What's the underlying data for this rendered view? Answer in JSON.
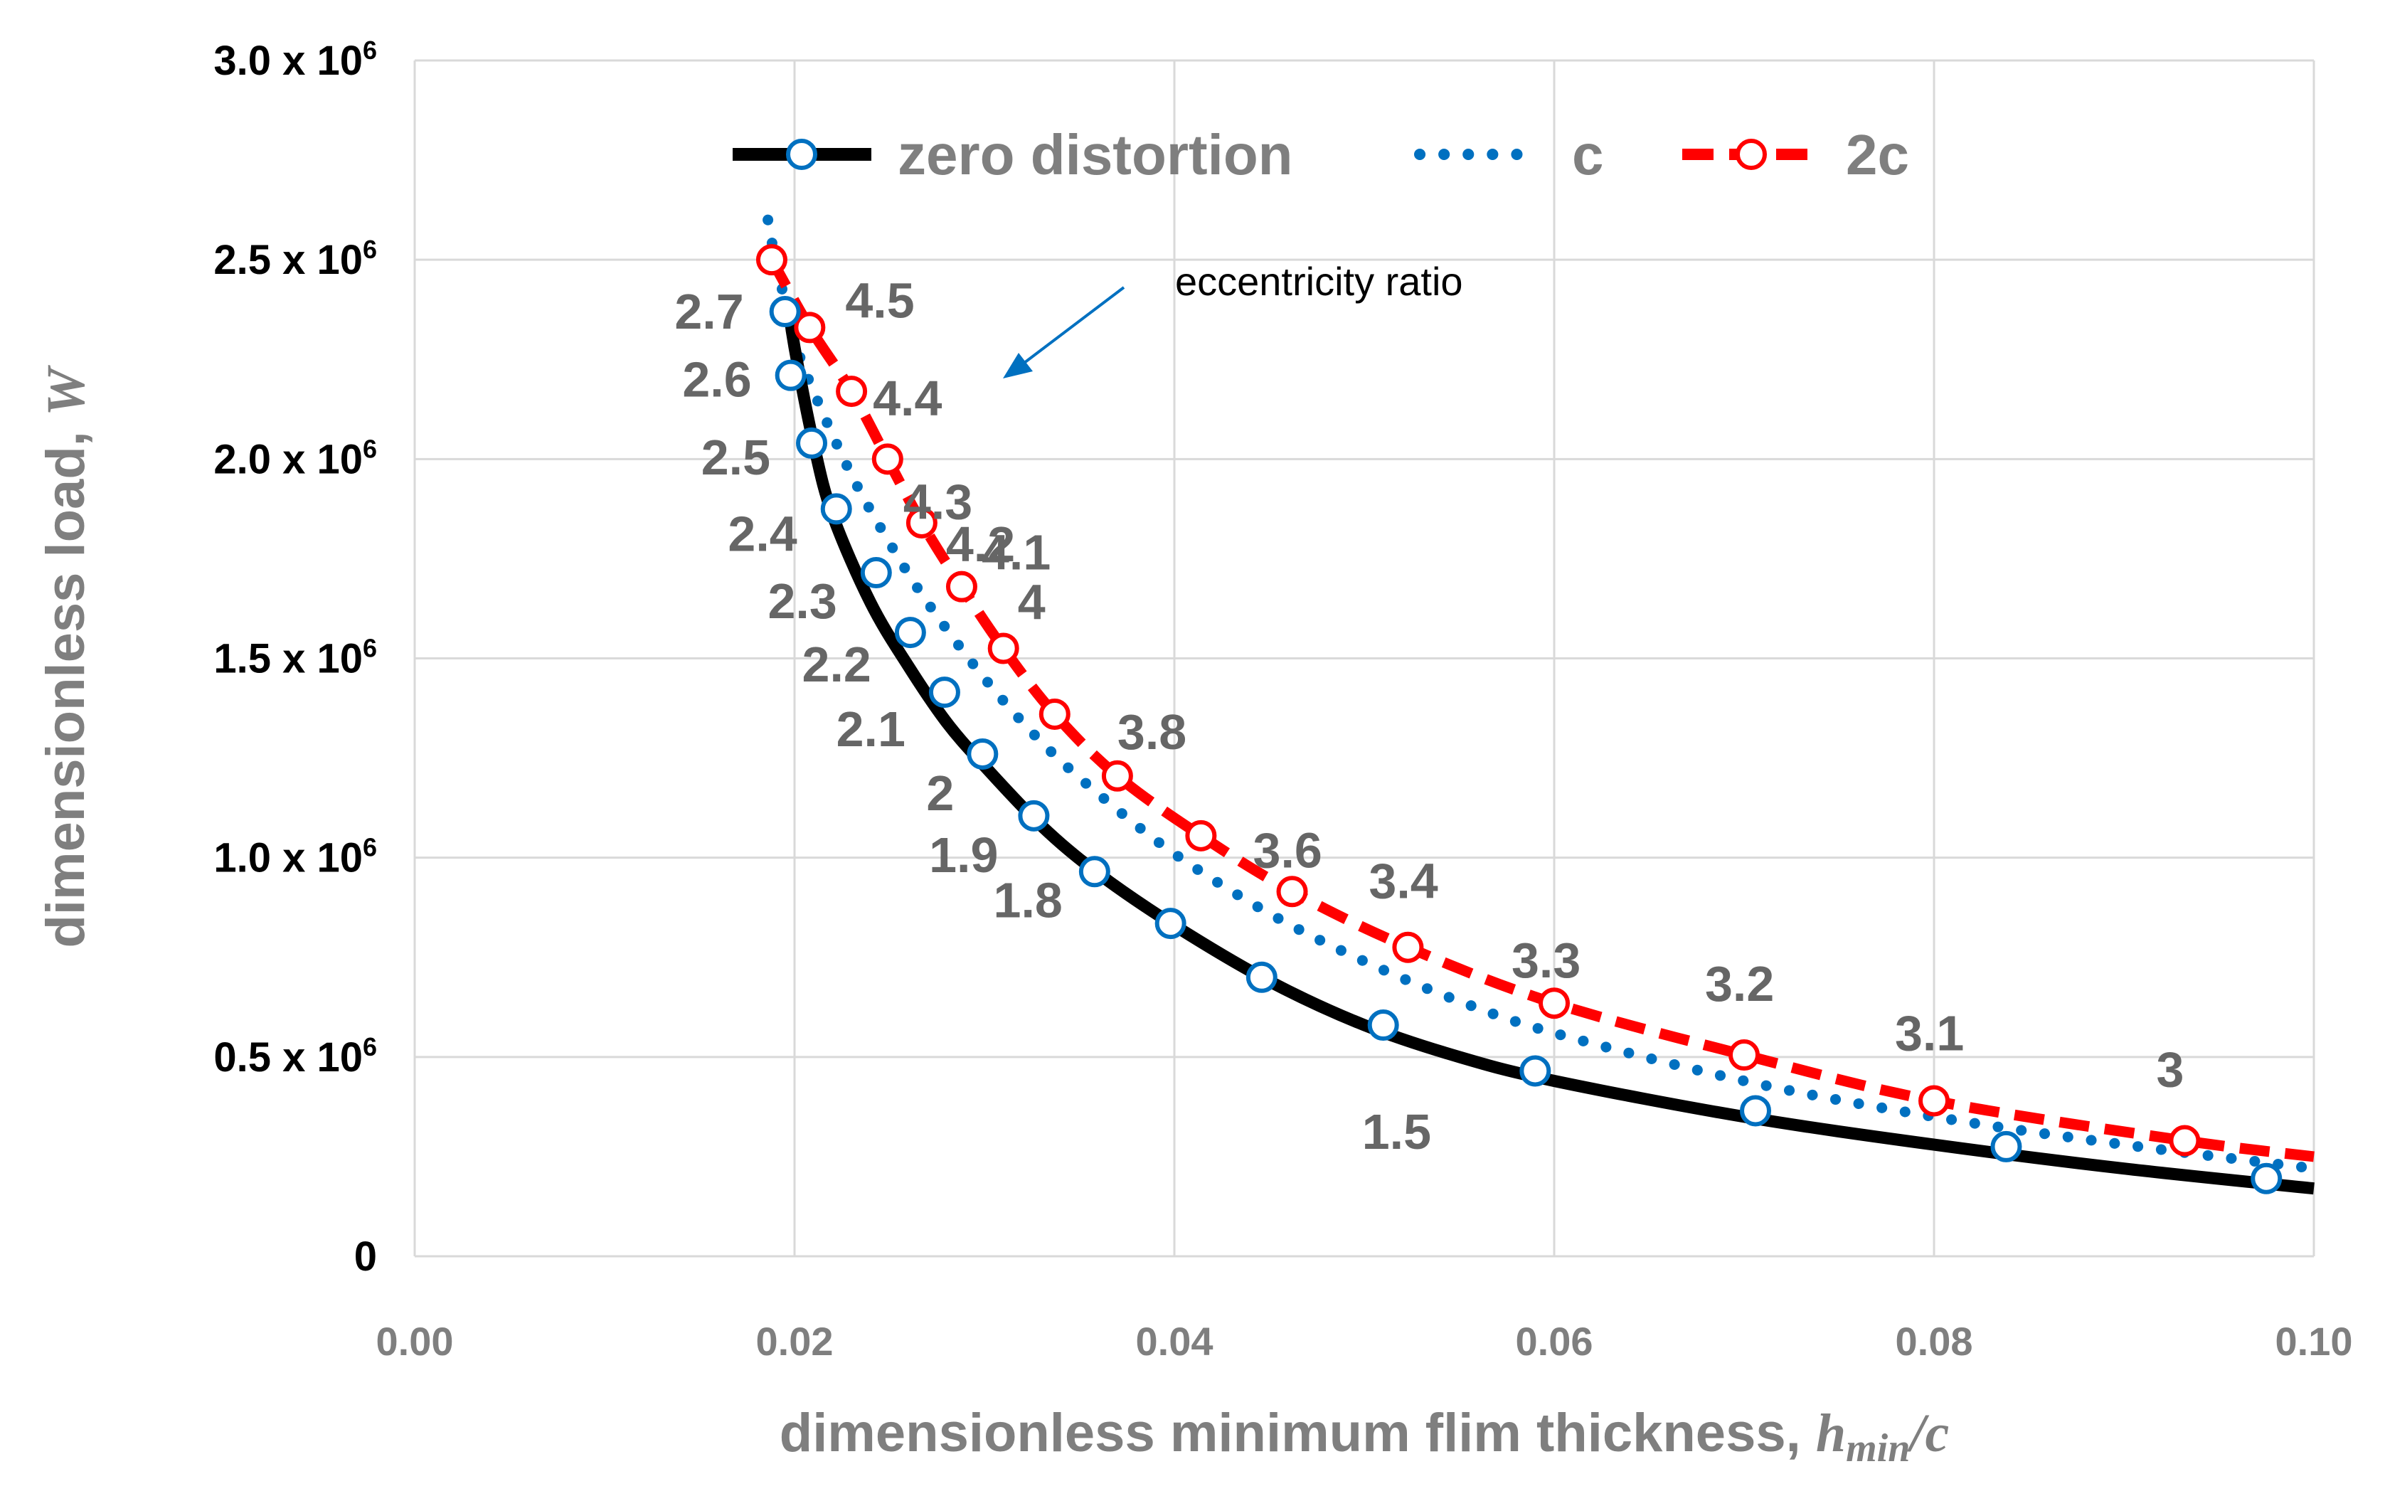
{
  "chart_data": {
    "type": "line",
    "title": "",
    "xlabel": "dimensionless minimum flim thickness, ",
    "xlabel_symbol": "h",
    "xlabel_subscript": "min",
    "xlabel_suffix": "/c",
    "ylabel": "dimensionless load, ",
    "ylabel_symbol": "W",
    "xlim": [
      0,
      0.1
    ],
    "ylim": [
      0,
      3000000
    ],
    "x_ticks": [
      "0.00",
      "0.02",
      "0.04",
      "0.06",
      "0.08",
      "0.10"
    ],
    "y_ticks": [
      {
        "value": 0,
        "base": "0",
        "exp": ""
      },
      {
        "value": 500000,
        "base": "0.5 x 10",
        "exp": "6"
      },
      {
        "value": 1000000,
        "base": "1.0 x 10",
        "exp": "6"
      },
      {
        "value": 1500000,
        "base": "1.5 x 10",
        "exp": "6"
      },
      {
        "value": 2000000,
        "base": "2.0 x 10",
        "exp": "6"
      },
      {
        "value": 2500000,
        "base": "2.5 x 10",
        "exp": "6"
      },
      {
        "value": 3000000,
        "base": "3.0 x 10",
        "exp": "6"
      }
    ],
    "grid": true,
    "legend_position": "top",
    "annotation": "eccentricity ratio",
    "series": [
      {
        "name": "zero distortion",
        "color": "#000000",
        "marker_color": "#0070c0",
        "style": "solid",
        "curve_x": [
          0.0197,
          0.02,
          0.021,
          0.022,
          0.024,
          0.026,
          0.028,
          0.03,
          0.033,
          0.036,
          0.04,
          0.045,
          0.05,
          0.055,
          0.06,
          0.07,
          0.08,
          0.09,
          0.1
        ],
        "curve_y": [
          2380000,
          2280000,
          2040000,
          1860000,
          1640000,
          1480000,
          1340000,
          1230000,
          1080000,
          960000,
          830000,
          690000,
          580000,
          500000,
          440000,
          350000,
          280000,
          220000,
          170000
        ],
        "points": [
          {
            "x": 0.0195,
            "y": 2370000,
            "label": "2.7"
          },
          {
            "x": 0.0198,
            "y": 2210000,
            "label": "2.6"
          },
          {
            "x": 0.0209,
            "y": 2040000,
            "label": "2.5"
          },
          {
            "x": 0.0222,
            "y": 1875000,
            "label": "2.4"
          },
          {
            "x": 0.0243,
            "y": 1715000,
            "label": "2.3"
          },
          {
            "x": 0.0261,
            "y": 1565000,
            "label": "2.2"
          },
          {
            "x": 0.0279,
            "y": 1415000,
            "label": "2.1"
          },
          {
            "x": 0.0299,
            "y": 1260000,
            "label": "2"
          },
          {
            "x": 0.0326,
            "y": 1105000,
            "label": "1.9"
          },
          {
            "x": 0.0358,
            "y": 965000,
            "label": "1.8"
          },
          {
            "x": 0.0398,
            "y": 835000,
            "label": ""
          },
          {
            "x": 0.0446,
            "y": 700000,
            "label": ""
          },
          {
            "x": 0.051,
            "y": 580000,
            "label": "1.5"
          },
          {
            "x": 0.059,
            "y": 465000,
            "label": ""
          },
          {
            "x": 0.0706,
            "y": 365000,
            "label": ""
          },
          {
            "x": 0.0838,
            "y": 275000,
            "label": ""
          },
          {
            "x": 0.0975,
            "y": 195000,
            "label": ""
          }
        ]
      },
      {
        "name": "c",
        "color": "#0070c0",
        "style": "dotted",
        "curve_x": [
          0.0186,
          0.019,
          0.02,
          0.021,
          0.023,
          0.025,
          0.027,
          0.03,
          0.033,
          0.036,
          0.04,
          0.045,
          0.05,
          0.055,
          0.06,
          0.07,
          0.08,
          0.09,
          0.1
        ],
        "curve_y": [
          2600000,
          2500000,
          2300000,
          2170000,
          1960000,
          1790000,
          1640000,
          1450000,
          1290000,
          1160000,
          1010000,
          860000,
          740000,
          640000,
          560000,
          440000,
          350000,
          280000,
          220000
        ],
        "points": []
      },
      {
        "name": "2c",
        "color": "#ff0000",
        "style": "dashed",
        "curve_x": [
          0.0188,
          0.0208,
          0.023,
          0.0249,
          0.0267,
          0.0288,
          0.031,
          0.0337,
          0.037,
          0.0414,
          0.0462,
          0.0523,
          0.06,
          0.07,
          0.08,
          0.0932,
          0.1
        ],
        "curve_y": [
          2500000,
          2330000,
          2170000,
          2000000,
          1840000,
          1680000,
          1525000,
          1360000,
          1205000,
          1055000,
          915000,
          775000,
          635000,
          505000,
          390000,
          290000,
          250000
        ],
        "points": [
          {
            "x": 0.0188,
            "y": 2500000,
            "label": ""
          },
          {
            "x": 0.0208,
            "y": 2330000,
            "label": "4.5"
          },
          {
            "x": 0.023,
            "y": 2170000,
            "label": "4.4"
          },
          {
            "x": 0.0249,
            "y": 2000000,
            "label": "4.3"
          },
          {
            "x": 0.0267,
            "y": 1840000,
            "label": "4.2"
          },
          {
            "x": 0.0288,
            "y": 1680000,
            "label": "4.1"
          },
          {
            "x": 0.031,
            "y": 1525000,
            "label": "4"
          },
          {
            "x": 0.0337,
            "y": 1360000,
            "label": ""
          },
          {
            "x": 0.037,
            "y": 1205000,
            "label": "3.8"
          },
          {
            "x": 0.0414,
            "y": 1055000,
            "label": ""
          },
          {
            "x": 0.0462,
            "y": 915000,
            "label": "3.6"
          },
          {
            "x": 0.0523,
            "y": 775000,
            "label": "3.4"
          },
          {
            "x": 0.06,
            "y": 635000,
            "label": "3.3"
          },
          {
            "x": 0.07,
            "y": 505000,
            "label": "3.2"
          },
          {
            "x": 0.08,
            "y": 390000,
            "label": "3.1"
          },
          {
            "x": 0.0932,
            "y": 290000,
            "label": "3"
          }
        ]
      }
    ]
  }
}
